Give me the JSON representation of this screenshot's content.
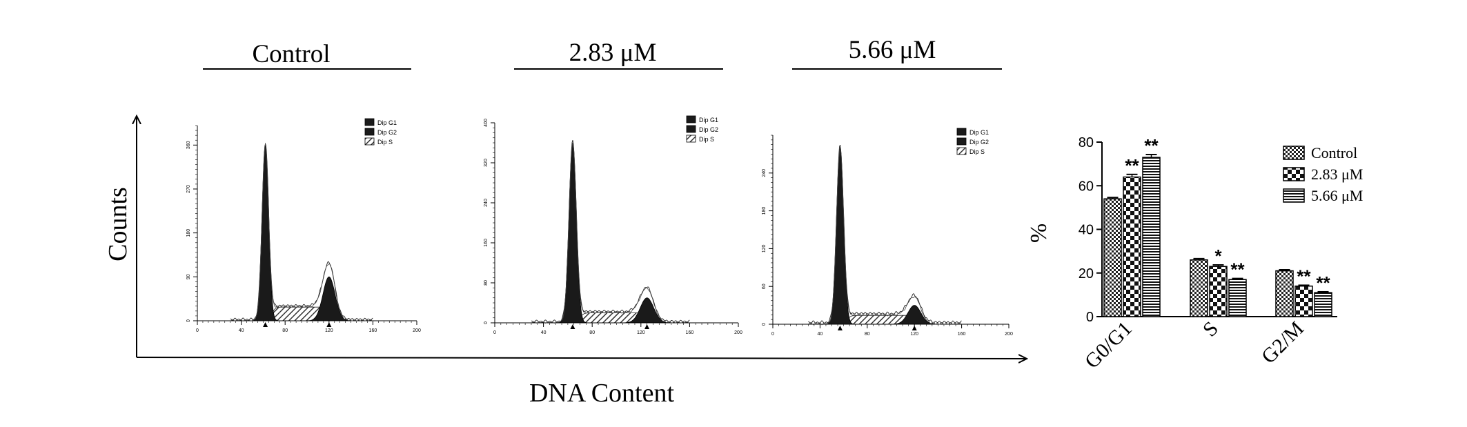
{
  "chart_data": [
    {
      "type": "area",
      "panel": "flow-cytometry-histograms",
      "xlabel": "DNA Content",
      "ylabel": "Counts",
      "legend": [
        "Dip G1",
        "Dip G2",
        "Dip S"
      ],
      "legend_placement": "top-right of each histogram",
      "peak_markers": [
        "▲",
        "▲"
      ],
      "histograms": [
        {
          "title": "Control",
          "xlim": [
            0,
            200
          ],
          "x_ticks": [
            0,
            40,
            80,
            120,
            160,
            200
          ],
          "ylim": [
            0,
            400
          ],
          "y_ticks": [
            0,
            90,
            180,
            270,
            360
          ],
          "g1_peak": {
            "x": 62,
            "y": 360
          },
          "g2_peak": {
            "x": 120,
            "y": 90
          },
          "s_level": 28
        },
        {
          "title": "2.83 μM",
          "xlim": [
            0,
            200
          ],
          "x_ticks": [
            0,
            40,
            80,
            120,
            160,
            200
          ],
          "ylim": [
            0,
            400
          ],
          "y_ticks": [
            0,
            80,
            160,
            240,
            320,
            400
          ],
          "g1_peak": {
            "x": 64,
            "y": 360
          },
          "g2_peak": {
            "x": 125,
            "y": 50
          },
          "s_level": 20
        },
        {
          "title": "5.66 μM",
          "xlim": [
            0,
            200
          ],
          "x_ticks": [
            0,
            40,
            80,
            120,
            160,
            200
          ],
          "ylim": [
            0,
            300
          ],
          "y_ticks": [
            0,
            60,
            120,
            180,
            240
          ],
          "g1_peak": {
            "x": 57,
            "y": 280
          },
          "g2_peak": {
            "x": 120,
            "y": 30
          },
          "s_level": 14
        }
      ]
    },
    {
      "type": "bar",
      "panel": "cell-cycle-distribution",
      "ylabel": "%",
      "ylim": [
        0,
        80
      ],
      "y_ticks": [
        0,
        20,
        40,
        60,
        80
      ],
      "legend_placement": "top-right",
      "categories": [
        "G0/G1",
        "S",
        "G2/M"
      ],
      "series": [
        {
          "name": "Control",
          "pattern": "checker-small",
          "values": [
            54,
            26,
            21
          ],
          "errors": [
            0.6,
            0.6,
            0.5
          ],
          "significance": [
            "",
            "",
            ""
          ]
        },
        {
          "name": "2.83 μM",
          "pattern": "checker-large",
          "values": [
            64,
            23,
            14
          ],
          "errors": [
            1.2,
            0.7,
            0.4
          ],
          "significance": [
            "**",
            "*",
            "**"
          ]
        },
        {
          "name": "5.66 μM",
          "pattern": "horizontal-stripes",
          "values": [
            73,
            17,
            11
          ],
          "errors": [
            1.3,
            0.5,
            0.4
          ],
          "significance": [
            "**",
            "**",
            "**"
          ]
        }
      ],
      "grid": false
    }
  ]
}
